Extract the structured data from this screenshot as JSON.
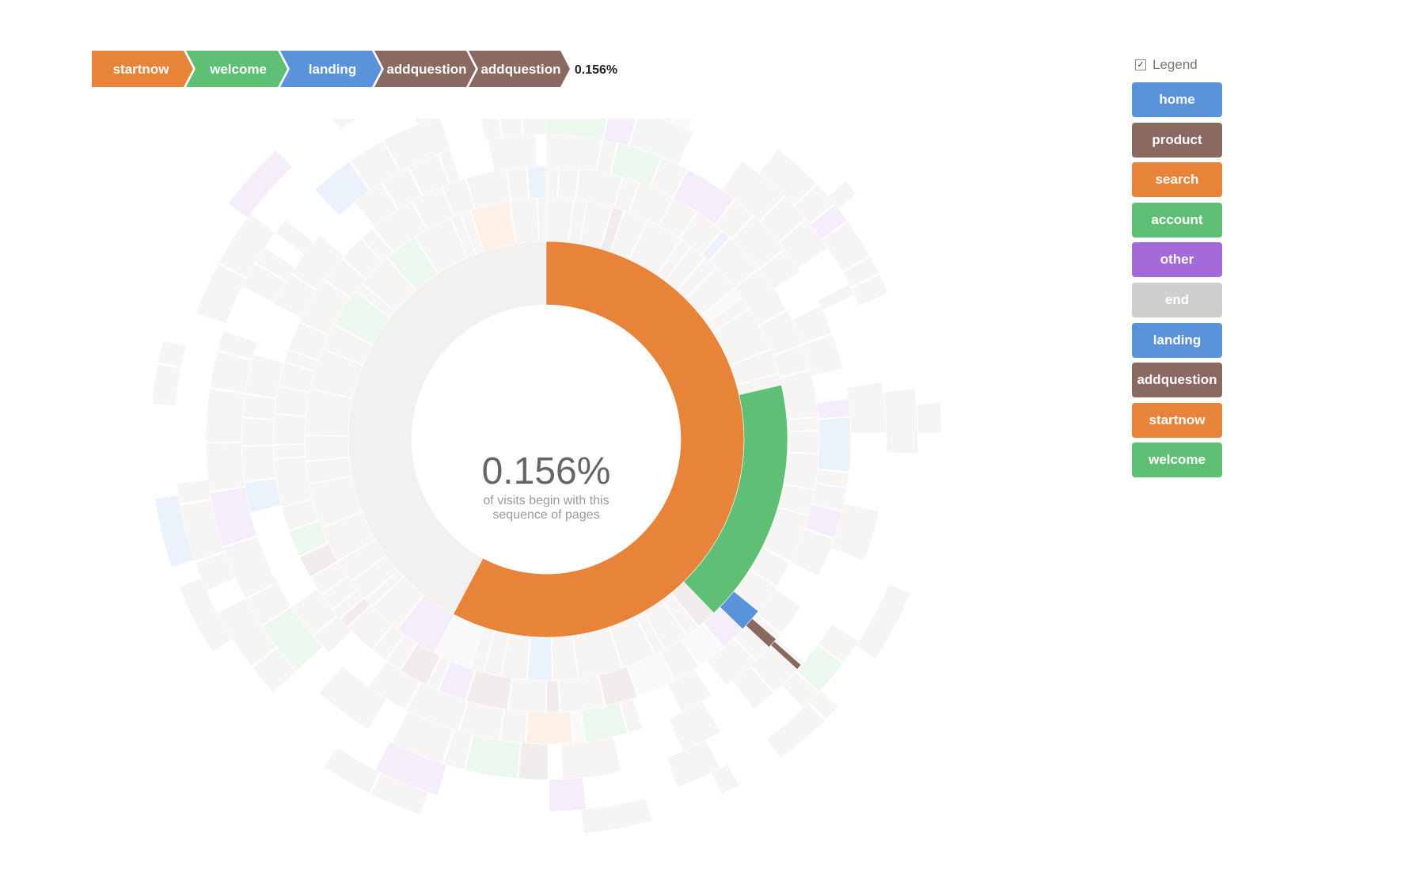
{
  "breadcrumb": {
    "steps": [
      {
        "label": "startnow",
        "color": "#e8833a"
      },
      {
        "label": "welcome",
        "color": "#5fc075"
      },
      {
        "label": "landing",
        "color": "#5b93db"
      },
      {
        "label": "addquestion",
        "color": "#8a6a60"
      },
      {
        "label": "addquestion",
        "color": "#8a6a60"
      }
    ],
    "percentage": "0.156%"
  },
  "center": {
    "percentage": "0.156%",
    "explanation_line1": "of visits begin with this",
    "explanation_line2": "sequence of pages"
  },
  "legend": {
    "toggle_label": "Legend",
    "toggle_checked": true,
    "items": [
      {
        "label": "home",
        "color": "#5b93db"
      },
      {
        "label": "product",
        "color": "#8a6a60"
      },
      {
        "label": "search",
        "color": "#e8833a"
      },
      {
        "label": "account",
        "color": "#5fc075"
      },
      {
        "label": "other",
        "color": "#a36ad8"
      },
      {
        "label": "end",
        "color": "#cfcfcf"
      },
      {
        "label": "landing",
        "color": "#5b93db"
      },
      {
        "label": "addquestion",
        "color": "#8a6a60"
      },
      {
        "label": "startnow",
        "color": "#e8833a"
      },
      {
        "label": "welcome",
        "color": "#5fc075"
      }
    ]
  },
  "chart_data": {
    "type": "sunburst",
    "title": "",
    "highlighted_path": [
      "startnow",
      "welcome",
      "landing",
      "addquestion",
      "addquestion"
    ],
    "highlighted_percentage": 0.156,
    "rings": [
      {
        "level": 1,
        "highlighted": {
          "name": "startnow",
          "start_deg": 0,
          "end_deg": 208
        }
      },
      {
        "level": 2,
        "highlighted": {
          "name": "welcome",
          "start_deg": 77,
          "end_deg": 136
        }
      },
      {
        "level": 3,
        "highlighted": {
          "name": "landing",
          "start_deg": 129,
          "end_deg": 134
        }
      },
      {
        "level": 4,
        "highlighted": {
          "name": "addquestion",
          "start_deg": 131,
          "end_deg": 133
        }
      },
      {
        "level": 5,
        "highlighted": {
          "name": "addquestion",
          "start_deg": 131.5,
          "end_deg": 132.5
        }
      }
    ],
    "colors": {
      "highlight_opacity": 1,
      "faded_opacity": 0.22,
      "faded_fill": "#d9cfcf"
    }
  }
}
